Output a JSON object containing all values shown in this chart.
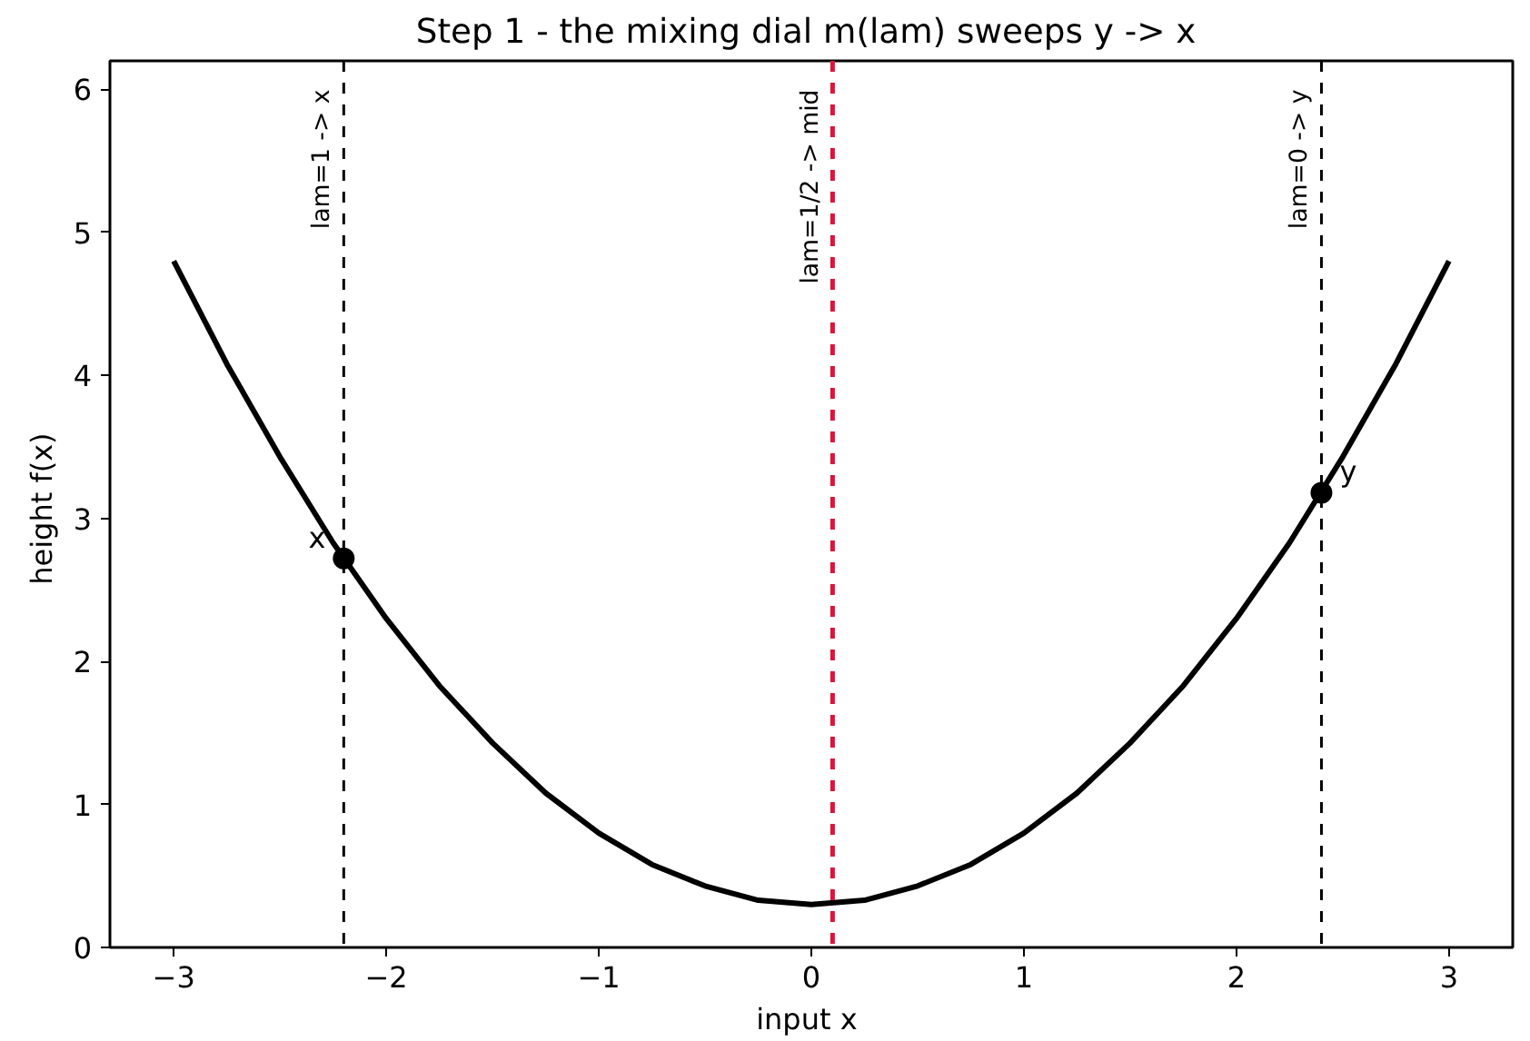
{
  "chart_data": {
    "type": "line",
    "title": "Step 1 - the mixing dial  m(lam) sweeps y -> x",
    "xlabel": "input  x",
    "ylabel": "height  f(x)",
    "xlim": [
      -3.3,
      3.3
    ],
    "ylim": [
      0,
      6.2
    ],
    "xticks": [
      {
        "value": -3,
        "label": "−3"
      },
      {
        "value": -2,
        "label": "−2"
      },
      {
        "value": -1,
        "label": "−1"
      },
      0,
      1,
      2,
      3
    ],
    "yticks": [
      0,
      1,
      2,
      3,
      4,
      5,
      6
    ],
    "grid": false,
    "series": [
      {
        "color": "#000000",
        "line_style": "solid",
        "marker": "none",
        "x": [
          -3,
          -2.75,
          -2.5,
          -2.25,
          -2,
          -1.75,
          -1.5,
          -1.25,
          -1,
          -0.75,
          -0.5,
          -0.25,
          0,
          0.25,
          0.5,
          0.75,
          1,
          1.25,
          1.5,
          1.75,
          2,
          2.25,
          2.5,
          2.75,
          3
        ],
        "values": [
          4.8,
          4.08,
          3.43,
          2.83,
          2.3,
          1.83,
          1.43,
          1.08,
          0.8,
          0.58,
          0.43,
          0.33,
          0.3,
          0.33,
          0.43,
          0.58,
          0.8,
          1.08,
          1.43,
          1.83,
          2.3,
          2.83,
          3.43,
          4.08,
          4.8
        ]
      },
      {
        "type": "scatter",
        "color": "#000000",
        "marker": "circle",
        "x": [
          -2.2,
          2.4
        ],
        "values": [
          2.72,
          3.18
        ]
      }
    ],
    "ref_lines": [
      {
        "axis": "x",
        "value": -2.2,
        "color": "#000000",
        "line_style": "dashed"
      },
      {
        "axis": "x",
        "value": 0.1,
        "color": "#dc143c",
        "line_style": "dashed"
      },
      {
        "axis": "x",
        "value": 2.4,
        "color": "#000000",
        "line_style": "dashed"
      }
    ],
    "annotations": [
      {
        "text": "x",
        "x": -2.2,
        "y": 2.72
      },
      {
        "text": "y",
        "x": 2.4,
        "y": 3.18
      },
      {
        "text": "lam=1 -> x",
        "x": -2.2,
        "y": 6.0
      },
      {
        "text": "lam=1/2 -> mid",
        "x": 0.1,
        "y": 6.0
      },
      {
        "text": "lam=0 -> y",
        "x": 2.4,
        "y": 6.0
      }
    ]
  }
}
